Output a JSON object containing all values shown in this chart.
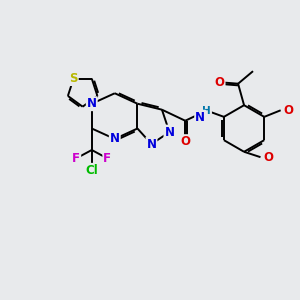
{
  "background_color": "#e8eaec",
  "bond_color": "#000000",
  "bond_width": 1.4,
  "atoms": {
    "S": {
      "color": "#b8b800"
    },
    "N": {
      "color": "#0000dd"
    },
    "O": {
      "color": "#dd0000"
    },
    "F": {
      "color": "#cc00cc"
    },
    "Cl": {
      "color": "#00bb00"
    },
    "NH": {
      "color": "#0077aa"
    },
    "OMe_upper": {
      "color": "#dd0000"
    },
    "OMe_lower": {
      "color": "#dd0000"
    }
  },
  "figsize": [
    3.0,
    3.0
  ],
  "dpi": 100
}
